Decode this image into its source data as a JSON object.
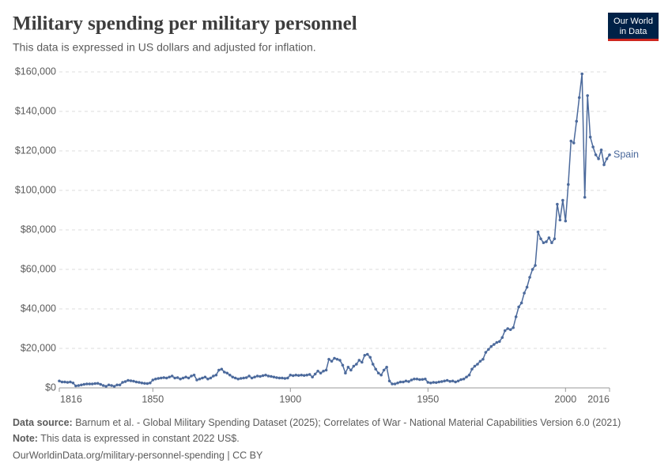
{
  "chart_data": {
    "type": "line",
    "title": "Military spending per military personnel",
    "subtitle": "This data is expressed in US dollars and adjusted for inflation.",
    "logo": [
      "Our World",
      "in Data"
    ],
    "x": [
      1816,
      1817,
      1818,
      1819,
      1820,
      1821,
      1822,
      1823,
      1824,
      1825,
      1826,
      1827,
      1828,
      1829,
      1830,
      1831,
      1832,
      1833,
      1834,
      1835,
      1836,
      1837,
      1838,
      1839,
      1840,
      1841,
      1842,
      1843,
      1844,
      1845,
      1846,
      1847,
      1848,
      1849,
      1850,
      1851,
      1852,
      1853,
      1854,
      1855,
      1856,
      1857,
      1858,
      1859,
      1860,
      1861,
      1862,
      1863,
      1864,
      1865,
      1866,
      1867,
      1868,
      1869,
      1870,
      1871,
      1872,
      1873,
      1874,
      1875,
      1876,
      1877,
      1878,
      1879,
      1880,
      1881,
      1882,
      1883,
      1884,
      1885,
      1886,
      1887,
      1888,
      1889,
      1890,
      1891,
      1892,
      1893,
      1894,
      1895,
      1896,
      1897,
      1898,
      1899,
      1900,
      1901,
      1902,
      1903,
      1904,
      1905,
      1906,
      1907,
      1908,
      1909,
      1910,
      1911,
      1912,
      1913,
      1914,
      1915,
      1916,
      1917,
      1918,
      1919,
      1920,
      1921,
      1922,
      1923,
      1924,
      1925,
      1926,
      1927,
      1928,
      1929,
      1930,
      1931,
      1932,
      1933,
      1934,
      1935,
      1936,
      1937,
      1938,
      1939,
      1940,
      1941,
      1942,
      1943,
      1944,
      1945,
      1946,
      1947,
      1948,
      1949,
      1950,
      1951,
      1952,
      1953,
      1954,
      1955,
      1956,
      1957,
      1958,
      1959,
      1960,
      1961,
      1962,
      1963,
      1964,
      1965,
      1966,
      1967,
      1968,
      1969,
      1970,
      1971,
      1972,
      1973,
      1974,
      1975,
      1976,
      1977,
      1978,
      1979,
      1980,
      1981,
      1982,
      1983,
      1984,
      1985,
      1986,
      1987,
      1988,
      1989,
      1990,
      1991,
      1992,
      1993,
      1994,
      1995,
      1996,
      1997,
      1998,
      1999,
      2000,
      2001,
      2002,
      2003,
      2004,
      2005,
      2006,
      2007,
      2008,
      2009,
      2010,
      2011,
      2012,
      2013,
      2014,
      2015,
      2016
    ],
    "series": [
      {
        "name": "Spain",
        "color": "#4c6a9c",
        "values": [
          3500,
          3000,
          3000,
          2800,
          3000,
          2500,
          1000,
          1200,
          1500,
          1800,
          2000,
          2000,
          2000,
          2200,
          2300,
          1800,
          1200,
          800,
          1500,
          1200,
          800,
          1500,
          1500,
          2800,
          3200,
          3800,
          3600,
          3400,
          3000,
          2800,
          2500,
          2300,
          2200,
          2500,
          4000,
          4500,
          4800,
          5000,
          5200,
          5000,
          5500,
          6000,
          5000,
          5200,
          4500,
          5000,
          5500,
          5000,
          6000,
          6500,
          4000,
          4500,
          5000,
          5500,
          4500,
          5000,
          6000,
          6500,
          9000,
          9500,
          8000,
          7500,
          6500,
          5500,
          5000,
          4500,
          4800,
          5000,
          5200,
          6000,
          5000,
          5500,
          6000,
          5800,
          6200,
          6500,
          6000,
          5800,
          5500,
          5200,
          5000,
          5000,
          4800,
          5000,
          6500,
          6200,
          6500,
          6300,
          6500,
          6300,
          6500,
          6800,
          5500,
          7000,
          8500,
          7500,
          8500,
          9000,
          14500,
          13500,
          15000,
          14500,
          14000,
          11500,
          7500,
          10500,
          9000,
          11000,
          12000,
          14000,
          13000,
          16500,
          17000,
          15500,
          12000,
          9500,
          7500,
          6500,
          9000,
          10500,
          3500,
          2000,
          2000,
          2500,
          3000,
          3000,
          3500,
          3200,
          4000,
          4500,
          4500,
          4200,
          4300,
          4500,
          2800,
          2500,
          2800,
          2700,
          3000,
          3200,
          3500,
          3800,
          3300,
          3500,
          3000,
          3500,
          4200,
          4500,
          5500,
          6500,
          9500,
          11000,
          12000,
          13500,
          14500,
          18000,
          19500,
          21000,
          22000,
          23000,
          23500,
          25500,
          29000,
          30000,
          29500,
          30500,
          36000,
          41000,
          43000,
          48000,
          51000,
          56000,
          60000,
          62000,
          79000,
          75500,
          73500,
          74000,
          76000,
          73500,
          75500,
          93000,
          85000,
          95000,
          84500,
          103000,
          125000,
          124000,
          135000,
          147000,
          159000,
          96500,
          148000,
          127000,
          122000,
          118000,
          116000,
          120500,
          113000,
          116000,
          118000
        ]
      }
    ],
    "xlim": [
      1816,
      2016
    ],
    "xticks": [
      1816,
      1850,
      1900,
      1950,
      2000,
      2016
    ],
    "ylim": [
      0,
      160000
    ],
    "yticks": [
      {
        "value": 0,
        "label": "$0"
      },
      {
        "value": 20000,
        "label": "$20,000"
      },
      {
        "value": 40000,
        "label": "$40,000"
      },
      {
        "value": 60000,
        "label": "$60,000"
      },
      {
        "value": 80000,
        "label": "$80,000"
      },
      {
        "value": 100000,
        "label": "$100,000"
      },
      {
        "value": 120000,
        "label": "$120,000"
      },
      {
        "value": 140000,
        "label": "$140,000"
      },
      {
        "value": 160000,
        "label": "$160,000"
      }
    ],
    "grid": true,
    "footer": {
      "source_label": "Data source:",
      "source": "Barnum et al. - Global Military Spending Dataset (2025); Correlates of War - National Material Capabilities Version 6.0 (2021)",
      "note_label": "Note:",
      "note": "This data is expressed in constant 2022 US$.",
      "url": "OurWorldinData.org/military-personnel-spending | CC BY"
    }
  }
}
